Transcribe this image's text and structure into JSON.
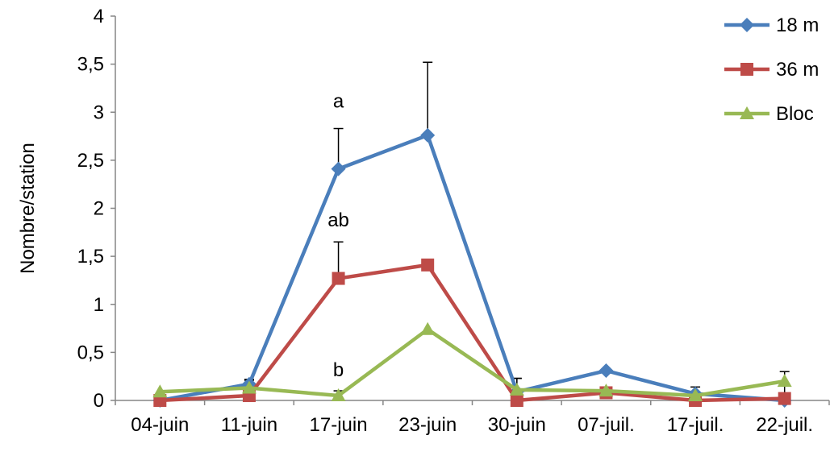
{
  "chart_data": {
    "type": "line",
    "title": "",
    "xlabel": "",
    "ylabel": "Nombre/station",
    "ylim": [
      0,
      4
    ],
    "yticks": [
      "0",
      "0,5",
      "1",
      "1,5",
      "2",
      "2,5",
      "3",
      "3,5",
      "4"
    ],
    "categories": [
      "04-juin",
      "11-juin",
      "17-juin",
      "23-juin",
      "30-juin",
      "07-juil.",
      "17-juil.",
      "22-juil."
    ],
    "grid": false,
    "legend_position": "top-right",
    "series": [
      {
        "name": "18 m",
        "color": "#4a7ebb",
        "marker": "diamond",
        "values": [
          0.0,
          0.17,
          2.41,
          2.76,
          0.09,
          0.31,
          0.07,
          0.0
        ],
        "error": [
          0,
          0.05,
          0.42,
          0.76,
          0.14,
          0,
          0.07,
          0.3
        ]
      },
      {
        "name": "36 m",
        "color": "#be4b48",
        "marker": "square",
        "values": [
          0.0,
          0.05,
          1.27,
          1.41,
          0.0,
          0.08,
          0.0,
          0.02
        ],
        "error": [
          0,
          0,
          0.38,
          0,
          0,
          0,
          0,
          0
        ]
      },
      {
        "name": "Bloc",
        "color": "#98b954",
        "marker": "triangle",
        "values": [
          0.09,
          0.13,
          0.05,
          0.74,
          0.11,
          0.1,
          0.05,
          0.2
        ],
        "error": [
          0,
          0.08,
          0.05,
          0,
          0.12,
          0,
          0,
          0
        ]
      }
    ],
    "annotations": [
      {
        "text": "a",
        "category": "17-juin",
        "y": 3.05
      },
      {
        "text": "ab",
        "category": "17-juin",
        "y": 1.81
      },
      {
        "text": "b",
        "category": "17-juin",
        "y": 0.25
      }
    ]
  }
}
